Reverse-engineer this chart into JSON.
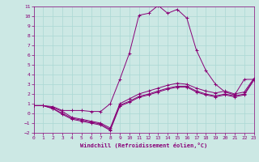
{
  "xlabel": "Windchill (Refroidissement éolien,°C)",
  "xlim": [
    0,
    23
  ],
  "ylim": [
    -2,
    11
  ],
  "xticks": [
    0,
    1,
    2,
    3,
    4,
    5,
    6,
    7,
    8,
    9,
    10,
    11,
    12,
    13,
    14,
    15,
    16,
    17,
    18,
    19,
    20,
    21,
    22,
    23
  ],
  "yticks": [
    -2,
    -1,
    0,
    1,
    2,
    3,
    4,
    5,
    6,
    7,
    8,
    9,
    10,
    11
  ],
  "bg_color": "#cce8e4",
  "line_color": "#880077",
  "grid_color": "#aad8d4",
  "line1_x": [
    0,
    1,
    2,
    3,
    4,
    5,
    6,
    7,
    8,
    9,
    10,
    11,
    12,
    13,
    14,
    15,
    16,
    17,
    18,
    19,
    20,
    21,
    22,
    23
  ],
  "line1_y": [
    0.8,
    0.8,
    0.7,
    0.3,
    0.3,
    0.3,
    0.2,
    0.2,
    1.0,
    3.5,
    6.2,
    10.1,
    10.3,
    11.1,
    10.3,
    10.7,
    9.8,
    6.5,
    4.4,
    3.0,
    2.2,
    1.9,
    3.5,
    3.5
  ],
  "line2_x": [
    0,
    1,
    2,
    3,
    4,
    5,
    6,
    7,
    8,
    9,
    10,
    11,
    12,
    13,
    14,
    15,
    16,
    17,
    18,
    19,
    20,
    21,
    22,
    23
  ],
  "line2_y": [
    0.8,
    0.8,
    0.6,
    0.2,
    -0.4,
    -0.6,
    -0.8,
    -1.0,
    -1.5,
    1.0,
    1.5,
    2.0,
    2.3,
    2.6,
    2.9,
    3.1,
    3.0,
    2.6,
    2.3,
    2.1,
    2.3,
    2.0,
    2.2,
    3.6
  ],
  "line3_x": [
    0,
    1,
    2,
    3,
    4,
    5,
    6,
    7,
    8,
    9,
    10,
    11,
    12,
    13,
    14,
    15,
    16,
    17,
    18,
    19,
    20,
    21,
    22,
    23
  ],
  "line3_y": [
    0.8,
    0.8,
    0.5,
    0.0,
    -0.5,
    -0.7,
    -0.9,
    -1.1,
    -1.65,
    0.85,
    1.25,
    1.75,
    2.0,
    2.3,
    2.6,
    2.8,
    2.8,
    2.3,
    2.0,
    1.8,
    2.0,
    1.8,
    2.0,
    3.5
  ],
  "line4_x": [
    0,
    1,
    2,
    3,
    4,
    5,
    6,
    7,
    8,
    9,
    10,
    11,
    12,
    13,
    14,
    15,
    16,
    17,
    18,
    19,
    20,
    21,
    22,
    23
  ],
  "line4_y": [
    0.8,
    0.8,
    0.5,
    -0.1,
    -0.6,
    -0.8,
    -1.0,
    -1.2,
    -1.75,
    0.75,
    1.15,
    1.65,
    1.9,
    2.2,
    2.5,
    2.7,
    2.7,
    2.2,
    1.9,
    1.7,
    1.9,
    1.7,
    1.9,
    3.4
  ]
}
